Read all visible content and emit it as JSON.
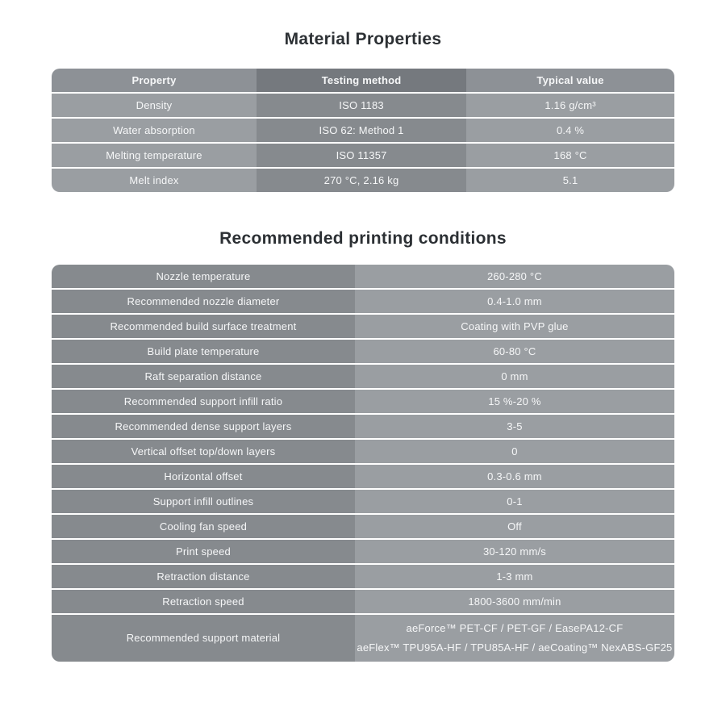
{
  "colors": {
    "page_bg": "#ffffff",
    "title_text": "#2c3034",
    "cell_text": "#f6f7f8",
    "head_outer": "#8d9196",
    "head_middle": "#75797e",
    "body_outer": "#9a9ea2",
    "body_middle": "#868a8e",
    "divider": "#ffffff"
  },
  "material_properties": {
    "title": "Material Properties",
    "headers": [
      "Property",
      "Testing method",
      "Typical value"
    ],
    "rows": [
      {
        "property": "Density",
        "method": "ISO 1183",
        "value": "1.16 g/cm³"
      },
      {
        "property": "Water absorption",
        "method": "ISO 62: Method 1",
        "value": "0.4 %"
      },
      {
        "property": "Melting temperature",
        "method": "ISO 11357",
        "value": "168 °C"
      },
      {
        "property": "Melt index",
        "method": "270 °C, 2.16 kg",
        "value": "5.1"
      }
    ]
  },
  "printing_conditions": {
    "title": "Recommended printing conditions",
    "rows": [
      {
        "label": "Nozzle temperature",
        "value": "260-280 °C"
      },
      {
        "label": "Recommended nozzle diameter",
        "value": "0.4-1.0 mm"
      },
      {
        "label": "Recommended build surface treatment",
        "value": "Coating with PVP glue"
      },
      {
        "label": "Build plate temperature",
        "value": "60-80 °C"
      },
      {
        "label": "Raft separation distance",
        "value": "0 mm"
      },
      {
        "label": "Recommended support infill ratio",
        "value": "15 %-20 %"
      },
      {
        "label": "Recommended dense support layers",
        "value": "3-5"
      },
      {
        "label": "Vertical offset top/down layers",
        "value": "0"
      },
      {
        "label": "Horizontal offset",
        "value": "0.3-0.6 mm"
      },
      {
        "label": "Support infill outlines",
        "value": "0-1"
      },
      {
        "label": "Cooling fan speed",
        "value": "Off"
      },
      {
        "label": "Print speed",
        "value": "30-120 mm/s"
      },
      {
        "label": "Retraction distance",
        "value": "1-3 mm"
      },
      {
        "label": "Retraction speed",
        "value": "1800-3600 mm/min"
      }
    ],
    "support_material_row": {
      "label": "Recommended support material",
      "value_line1": "aeForce™ PET-CF / PET-GF / EasePA12-CF",
      "value_line2": "aeFlex™ TPU95A-HF / TPU85A-HF / aeCoating™ NexABS-GF25"
    }
  }
}
